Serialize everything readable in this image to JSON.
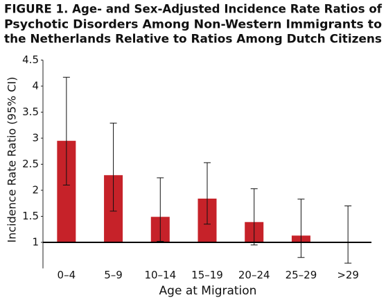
{
  "chart_data": {
    "type": "bar",
    "title": [
      "FIGURE 1. Age- and Sex-Adjusted Incidence Rate Ratios of",
      "Psychotic Disorders Among Non-Western Immigrants to",
      "the Netherlands Relative to Ratios Among Dutch Citizens"
    ],
    "x_label": "Age at Migration",
    "y_label": "Incidence Rate Ratio (95% CI)",
    "categories": [
      "0–4",
      "5–9",
      "10–14",
      "15–19",
      "20–24",
      "25–29",
      ">29"
    ],
    "values": [
      2.95,
      2.29,
      1.49,
      1.84,
      1.39,
      1.13,
      null
    ],
    "lower": [
      2.1,
      1.6,
      1.02,
      1.35,
      0.95,
      0.71,
      0.6
    ],
    "upper": [
      4.17,
      3.29,
      2.24,
      2.53,
      2.03,
      1.83,
      1.7
    ],
    "color": "#c62229",
    "reference_line": 1,
    "ylim": [
      0.5,
      4.5
    ],
    "yticks": [
      1,
      1.5,
      2,
      2.5,
      3,
      3.5,
      4,
      4.5
    ]
  }
}
